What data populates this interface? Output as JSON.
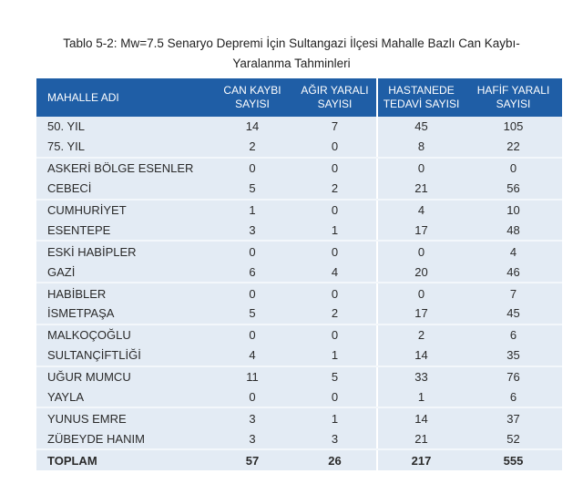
{
  "title_line1": "Tablo 5-2: Mw=7.5 Senaryo Depremi İçin Sultangazi İlçesi Mahalle Bazlı Can Kaybı-",
  "title_line2": "Yaralanma Tahminleri",
  "header_color": "#1f5ea6",
  "columns": [
    {
      "l1": "MAHALLE ADI",
      "l2": ""
    },
    {
      "l1": "CAN KAYBI",
      "l2": "SAYISI"
    },
    {
      "l1": "AĞIR YARALI",
      "l2": "SAYISI"
    },
    {
      "l1": "HASTANEDE",
      "l2": "TEDAVİ SAYISI"
    },
    {
      "l1": "HAFİF YARALI",
      "l2": "SAYISI"
    }
  ],
  "rows": [
    [
      "50. YIL",
      "14",
      "7",
      "45",
      "105"
    ],
    [
      "75. YIL",
      "2",
      "0",
      "8",
      "22"
    ],
    [
      "ASKERİ BÖLGE ESENLER",
      "0",
      "0",
      "0",
      "0"
    ],
    [
      "CEBECİ",
      "5",
      "2",
      "21",
      "56"
    ],
    [
      "CUMHURİYET",
      "1",
      "0",
      "4",
      "10"
    ],
    [
      "ESENTEPE",
      "3",
      "1",
      "17",
      "48"
    ],
    [
      "ESKİ HABİPLER",
      "0",
      "0",
      "0",
      "4"
    ],
    [
      "GAZİ",
      "6",
      "4",
      "20",
      "46"
    ],
    [
      "HABİBLER",
      "0",
      "0",
      "0",
      "7"
    ],
    [
      "İSMETPAŞA",
      "5",
      "2",
      "17",
      "45"
    ],
    [
      "MALKOÇOĞLU",
      "0",
      "0",
      "2",
      "6"
    ],
    [
      "SULTANÇİFTLİĞİ",
      "4",
      "1",
      "14",
      "35"
    ],
    [
      "UĞUR MUMCU",
      "11",
      "5",
      "33",
      "76"
    ],
    [
      "YAYLA",
      "0",
      "0",
      "1",
      "6"
    ],
    [
      "YUNUS EMRE",
      "3",
      "1",
      "14",
      "37"
    ],
    [
      "ZÜBEYDE HANIM",
      "3",
      "3",
      "21",
      "52"
    ]
  ],
  "total": [
    "TOPLAM",
    "57",
    "26",
    "217",
    "555"
  ]
}
